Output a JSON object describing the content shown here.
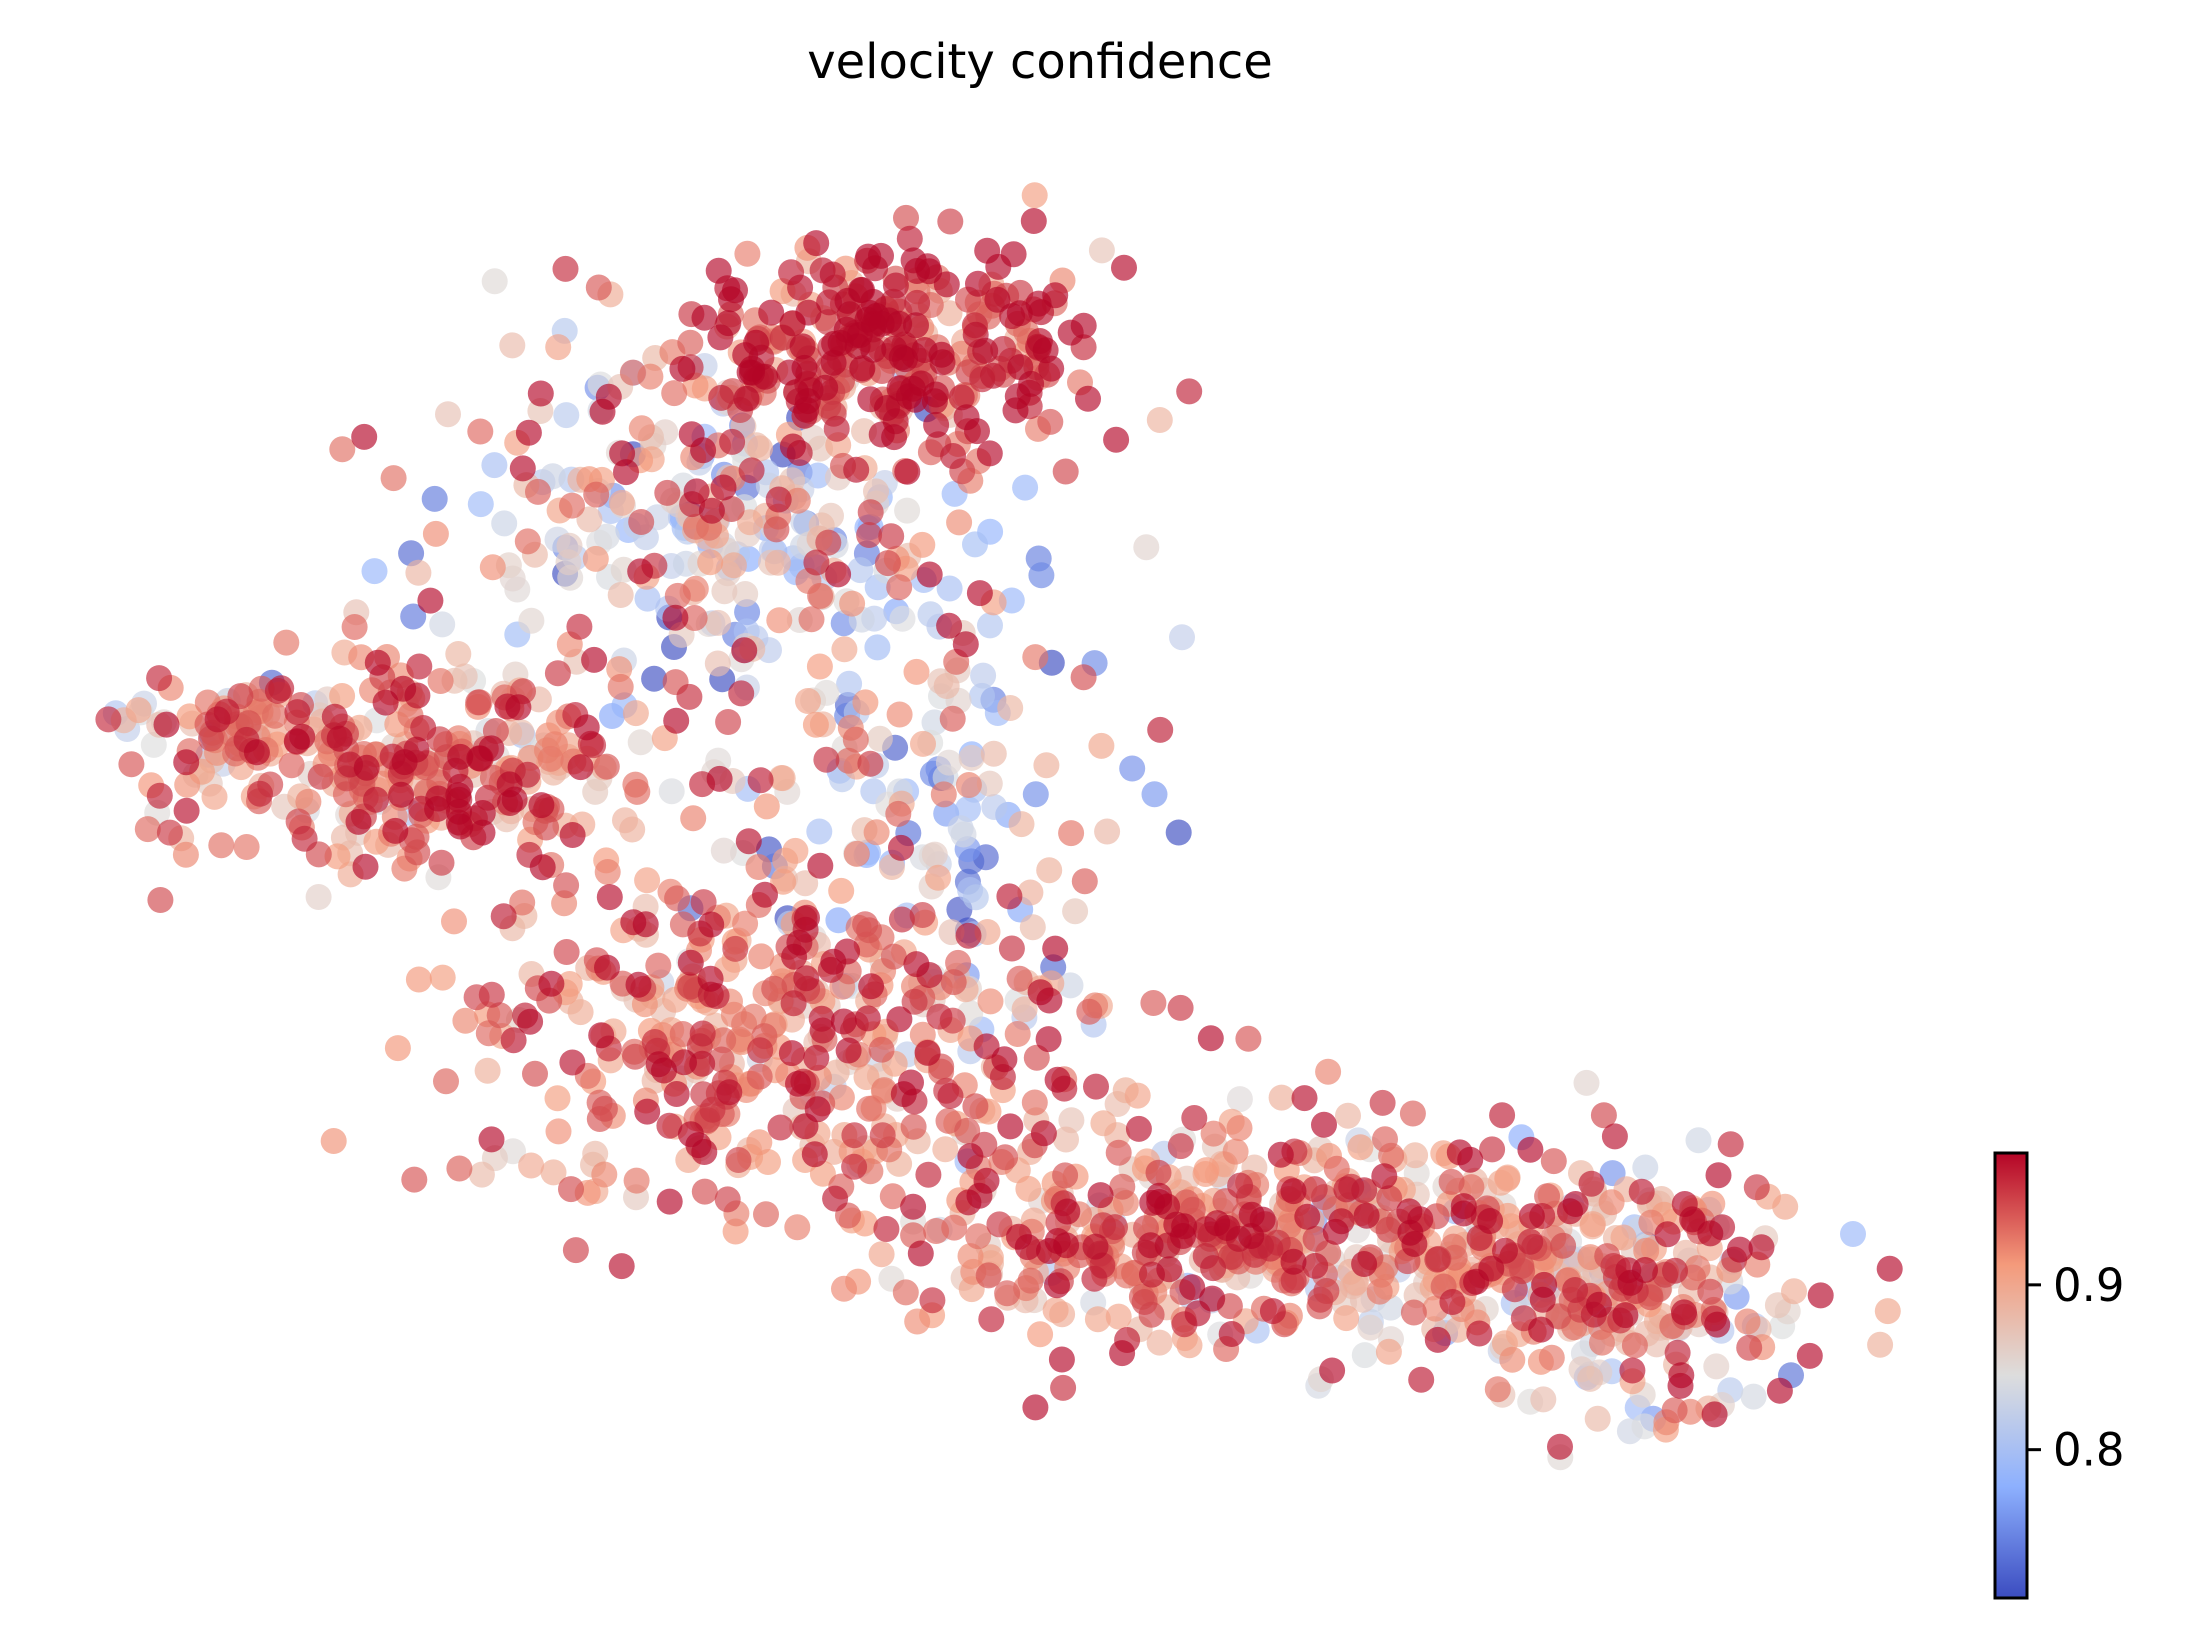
{
  "chart_data": {
    "type": "scatter",
    "title": "velocity confidence",
    "xlabel": "",
    "ylabel": "",
    "axes_visible": false,
    "grid": false,
    "colormap": "coolwarm",
    "point_alpha": 0.65,
    "colorbar": {
      "range": [
        0.71,
        0.98
      ],
      "ticks": [
        0.8,
        0.9
      ],
      "tick_labels": [
        "0.8",
        "0.9"
      ],
      "placement": "bottom-right"
    },
    "x_range": [
      0,
      100
    ],
    "y_range": [
      0,
      100
    ],
    "clusters": [
      {
        "name_hint": "top-lobe",
        "cx": 42,
        "cy": 87,
        "sx": 6,
        "sy": 4,
        "n": 320,
        "mean": 0.955,
        "spread": 0.04
      },
      {
        "name_hint": "upper-mid",
        "cx": 33,
        "cy": 74,
        "sx": 8,
        "sy": 6,
        "n": 300,
        "mean": 0.86,
        "spread": 0.07
      },
      {
        "name_hint": "left-wing",
        "cx": 17,
        "cy": 57,
        "sx": 7,
        "sy": 4,
        "n": 300,
        "mean": 0.93,
        "spread": 0.04
      },
      {
        "name_hint": "left-tip",
        "cx": 7,
        "cy": 60,
        "sx": 3,
        "sy": 1.5,
        "n": 60,
        "mean": 0.9,
        "spread": 0.06
      },
      {
        "name_hint": "center-diagonal",
        "cx": 36,
        "cy": 38,
        "sx": 9,
        "sy": 6,
        "n": 420,
        "mean": 0.925,
        "spread": 0.04
      },
      {
        "name_hint": "mid-sparse",
        "cx": 44,
        "cy": 55,
        "sx": 6,
        "sy": 8,
        "n": 160,
        "mean": 0.85,
        "spread": 0.08
      },
      {
        "name_hint": "right-arm",
        "cx": 62,
        "cy": 23,
        "sx": 10,
        "sy": 4,
        "n": 500,
        "mean": 0.915,
        "spread": 0.05
      },
      {
        "name_hint": "far-right",
        "cx": 81,
        "cy": 20,
        "sx": 6,
        "sy": 4,
        "n": 300,
        "mean": 0.9,
        "spread": 0.06
      }
    ]
  }
}
